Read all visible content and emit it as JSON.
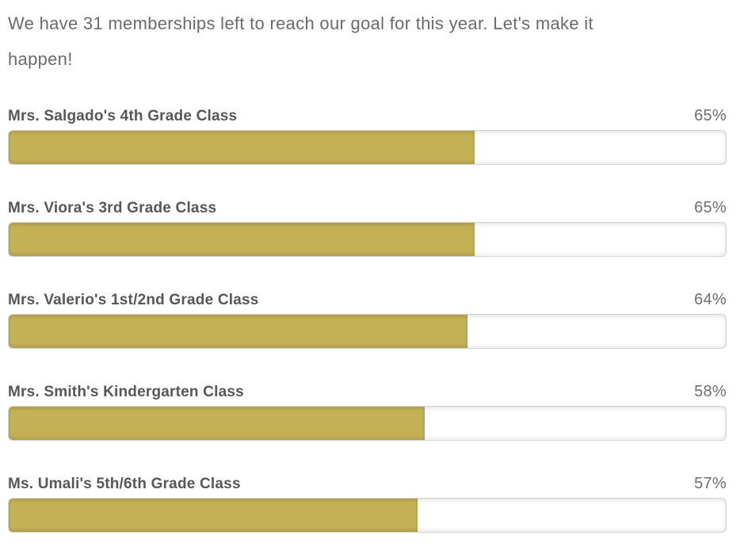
{
  "page": {
    "background": "#ffffff"
  },
  "intro": {
    "text": "We have 31 memberships left to reach our goal for this year. Let's make it happen!",
    "lines": [
      "We have 31 memberships left to reach our goal for this year. Let's make it",
      "happen!"
    ]
  },
  "colors": {
    "bar_fill": "#c4b155",
    "bar_track_background": "#ffffff",
    "bar_track_border": "#d4d4d4",
    "intro_text": "#6a6b6d",
    "label_text": "#56575a",
    "percent_text": "#6d6e71"
  },
  "chart_data": {
    "type": "bar",
    "orientation": "horizontal",
    "title": "We have 31 memberships left to reach our goal for this year. Let's make it happen!",
    "categories": [
      "Mrs. Salgado's 4th Grade Class",
      "Mrs. Viora's 3rd Grade Class",
      "Mrs. Valerio's 1st/2nd Grade Class",
      "Mrs. Smith's Kindergarten Class",
      "Ms. Umali's 5th/6th Grade Class"
    ],
    "values": [
      65,
      65,
      64,
      58,
      57
    ],
    "value_labels": [
      "65%",
      "65%",
      "64%",
      "58%",
      "57%"
    ],
    "unit": "%",
    "xlim": [
      0,
      100
    ],
    "grid": false,
    "legend": false,
    "bar_color": "#c4b155"
  },
  "progress_rows": [
    {
      "label": "Mrs. Salgado's 4th Grade Class",
      "percent": 65,
      "percent_label": "65%"
    },
    {
      "label": "Mrs. Viora's 3rd Grade Class",
      "percent": 65,
      "percent_label": "65%"
    },
    {
      "label": "Mrs. Valerio's 1st/2nd Grade Class",
      "percent": 64,
      "percent_label": "64%"
    },
    {
      "label": "Mrs. Smith's Kindergarten Class",
      "percent": 58,
      "percent_label": "58%"
    },
    {
      "label": "Ms. Umali's 5th/6th Grade Class",
      "percent": 57,
      "percent_label": "57%"
    }
  ]
}
